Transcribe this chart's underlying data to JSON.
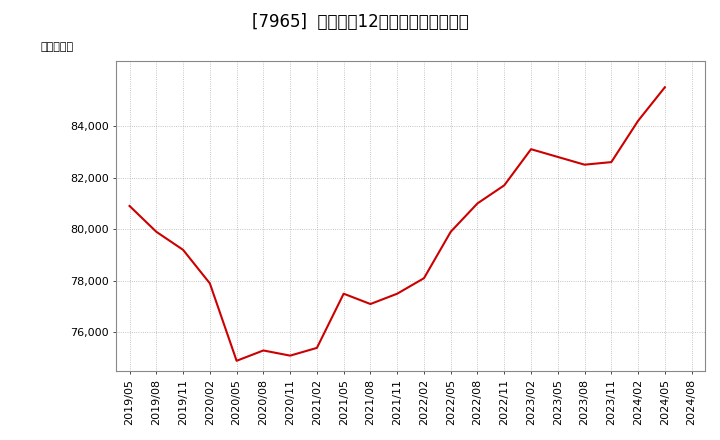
{
  "title": "[7965]  売上高の12か月移動合計の推移",
  "ylabel": "（百万円）",
  "line_color": "#cc0000",
  "background_color": "#ffffff",
  "plot_bg_color": "#ffffff",
  "grid_color": "#aaaaaa",
  "dates": [
    "2019/05",
    "2019/08",
    "2019/11",
    "2020/02",
    "2020/05",
    "2020/08",
    "2020/11",
    "2021/02",
    "2021/05",
    "2021/08",
    "2021/11",
    "2022/02",
    "2022/05",
    "2022/08",
    "2022/11",
    "2023/02",
    "2023/05",
    "2023/08",
    "2023/11",
    "2024/02",
    "2024/05",
    "2024/08"
  ],
  "values": [
    80900,
    79900,
    79200,
    77900,
    74900,
    75300,
    75100,
    75400,
    77500,
    77100,
    77500,
    78100,
    79900,
    81000,
    81700,
    83100,
    82800,
    82500,
    82600,
    84200,
    85500,
    null
  ],
  "yticks": [
    76000,
    78000,
    80000,
    82000,
    84000
  ],
  "ylim": [
    74500,
    86500
  ],
  "title_fontsize": 12,
  "axis_fontsize": 8,
  "ylabel_fontsize": 8
}
